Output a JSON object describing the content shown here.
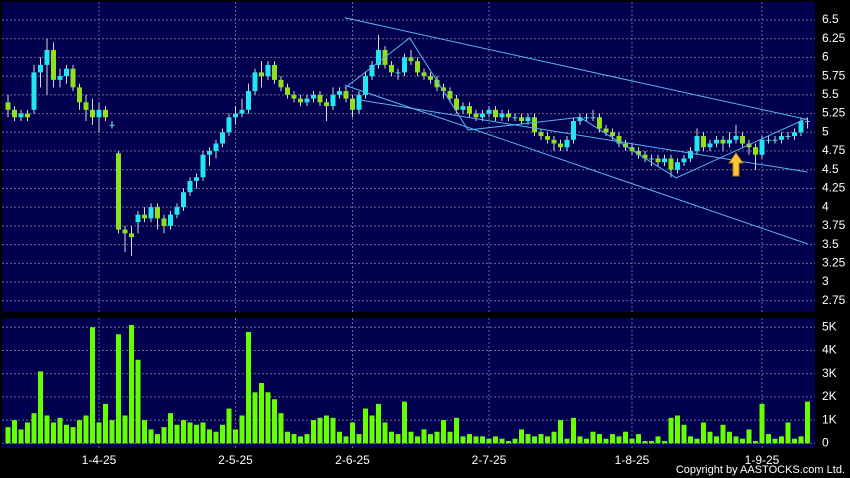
{
  "chart_data": [
    {
      "type": "candlestick",
      "up_color": "#22e6f2",
      "down_color": "#8fe01e",
      "grid": true,
      "line_color": "#5ab4f0",
      "ylim": [
        2.6,
        6.74
      ],
      "yticks": [
        6.5,
        6.25,
        6,
        5.75,
        5.5,
        5.25,
        5,
        4.75,
        4.5,
        4.25,
        4,
        3.75,
        3.5,
        3.25,
        3,
        2.75
      ],
      "ohlc": [
        [
          5.4,
          5.5,
          5.2,
          5.3
        ],
        [
          5.3,
          5.35,
          5.15,
          5.2
        ],
        [
          5.2,
          5.3,
          5.15,
          5.25
        ],
        [
          5.25,
          5.3,
          5.15,
          5.2
        ],
        [
          5.3,
          5.9,
          5.25,
          5.8
        ],
        [
          5.8,
          6.0,
          5.6,
          5.9
        ],
        [
          5.9,
          6.25,
          5.5,
          6.1
        ],
        [
          6.1,
          6.2,
          5.6,
          5.7
        ],
        [
          5.7,
          5.85,
          5.6,
          5.75
        ],
        [
          5.75,
          5.9,
          5.65,
          5.85
        ],
        [
          5.85,
          5.9,
          5.55,
          5.6
        ],
        [
          5.6,
          5.65,
          5.3,
          5.4
        ],
        [
          5.4,
          5.5,
          5.15,
          5.3
        ],
        [
          5.3,
          5.45,
          5.1,
          5.2
        ],
        [
          5.2,
          5.4,
          5.0,
          5.3
        ],
        [
          5.3,
          5.35,
          5.15,
          5.2
        ],
        [
          5.1,
          5.15,
          5.05,
          5.1
        ],
        [
          4.72,
          4.75,
          3.65,
          3.7
        ],
        [
          3.7,
          3.75,
          3.4,
          3.65
        ],
        [
          3.65,
          3.75,
          3.35,
          3.6
        ],
        [
          3.8,
          3.95,
          3.65,
          3.9
        ],
        [
          3.9,
          4.0,
          3.8,
          3.85
        ],
        [
          3.85,
          4.05,
          3.8,
          4.0
        ],
        [
          4.0,
          4.05,
          3.7,
          3.85
        ],
        [
          3.85,
          3.9,
          3.65,
          3.75
        ],
        [
          3.75,
          3.95,
          3.7,
          3.9
        ],
        [
          3.9,
          4.05,
          3.85,
          4.0
        ],
        [
          4.0,
          4.25,
          3.95,
          4.2
        ],
        [
          4.2,
          4.4,
          4.15,
          4.35
        ],
        [
          4.35,
          4.45,
          4.25,
          4.4
        ],
        [
          4.4,
          4.75,
          4.35,
          4.7
        ],
        [
          4.7,
          4.8,
          4.55,
          4.75
        ],
        [
          4.75,
          4.9,
          4.65,
          4.85
        ],
        [
          4.85,
          5.05,
          4.8,
          5.0
        ],
        [
          5.0,
          5.25,
          4.95,
          5.2
        ],
        [
          5.2,
          5.35,
          5.1,
          5.25
        ],
        [
          5.25,
          5.45,
          5.2,
          5.3
        ],
        [
          5.3,
          5.65,
          5.25,
          5.55
        ],
        [
          5.55,
          5.85,
          5.5,
          5.8
        ],
        [
          5.8,
          5.95,
          5.6,
          5.75
        ],
        [
          5.75,
          5.95,
          5.7,
          5.9
        ],
        [
          5.9,
          5.95,
          5.65,
          5.7
        ],
        [
          5.7,
          5.75,
          5.55,
          5.6
        ],
        [
          5.6,
          5.65,
          5.45,
          5.5
        ],
        [
          5.5,
          5.55,
          5.4,
          5.45
        ],
        [
          5.45,
          5.5,
          5.35,
          5.4
        ],
        [
          5.4,
          5.5,
          5.35,
          5.45
        ],
        [
          5.45,
          5.55,
          5.4,
          5.5
        ],
        [
          5.5,
          5.55,
          5.35,
          5.4
        ],
        [
          5.4,
          5.45,
          5.15,
          5.35
        ],
        [
          5.35,
          5.6,
          5.3,
          5.5
        ],
        [
          5.5,
          5.6,
          5.45,
          5.55
        ],
        [
          5.55,
          5.6,
          5.4,
          5.45
        ],
        [
          5.45,
          5.5,
          5.2,
          5.3
        ],
        [
          5.3,
          5.55,
          5.25,
          5.5
        ],
        [
          5.5,
          5.8,
          5.45,
          5.75
        ],
        [
          5.75,
          5.95,
          5.7,
          5.9
        ],
        [
          5.9,
          6.3,
          5.85,
          6.1
        ],
        [
          6.1,
          6.15,
          5.85,
          5.9
        ],
        [
          5.9,
          5.95,
          5.75,
          5.8
        ],
        [
          5.8,
          5.85,
          5.7,
          5.8
        ],
        [
          5.8,
          6.05,
          5.75,
          6.0
        ],
        [
          6.0,
          6.1,
          5.9,
          5.95
        ],
        [
          5.95,
          6.0,
          5.75,
          5.8
        ],
        [
          5.8,
          5.85,
          5.7,
          5.75
        ],
        [
          5.75,
          5.8,
          5.65,
          5.7
        ],
        [
          5.7,
          5.75,
          5.55,
          5.6
        ],
        [
          5.6,
          5.65,
          5.45,
          5.55
        ],
        [
          5.55,
          5.6,
          5.4,
          5.45
        ],
        [
          5.45,
          5.5,
          5.25,
          5.3
        ],
        [
          5.3,
          5.4,
          5.25,
          5.35
        ],
        [
          5.35,
          5.4,
          5.2,
          5.25
        ],
        [
          5.25,
          5.3,
          5.15,
          5.2
        ],
        [
          5.2,
          5.3,
          5.15,
          5.25
        ],
        [
          5.25,
          5.35,
          5.2,
          5.3
        ],
        [
          5.3,
          5.35,
          5.15,
          5.2
        ],
        [
          5.2,
          5.3,
          5.15,
          5.25
        ],
        [
          5.25,
          5.3,
          5.15,
          5.2
        ],
        [
          5.2,
          5.25,
          5.15,
          5.2
        ],
        [
          5.2,
          5.25,
          5.1,
          5.15
        ],
        [
          5.15,
          5.25,
          5.1,
          5.2
        ],
        [
          5.2,
          5.25,
          4.95,
          5.0
        ],
        [
          5.0,
          5.05,
          4.9,
          4.95
        ],
        [
          4.95,
          5.0,
          4.85,
          4.9
        ],
        [
          4.9,
          4.95,
          4.75,
          4.85
        ],
        [
          4.85,
          4.9,
          4.75,
          4.8
        ],
        [
          4.8,
          4.95,
          4.75,
          4.9
        ],
        [
          4.9,
          5.2,
          4.85,
          5.15
        ],
        [
          5.15,
          5.25,
          5.1,
          5.2
        ],
        [
          5.2,
          5.25,
          5.15,
          5.2
        ],
        [
          5.2,
          5.3,
          5.15,
          5.2
        ],
        [
          5.2,
          5.25,
          5.0,
          5.05
        ],
        [
          5.05,
          5.1,
          4.95,
          5.0
        ],
        [
          5.0,
          5.05,
          4.9,
          4.95
        ],
        [
          4.95,
          5.0,
          4.8,
          4.85
        ],
        [
          4.85,
          4.9,
          4.75,
          4.8
        ],
        [
          4.8,
          4.85,
          4.7,
          4.75
        ],
        [
          4.75,
          4.8,
          4.65,
          4.7
        ],
        [
          4.7,
          4.75,
          4.6,
          4.65
        ],
        [
          4.65,
          4.7,
          4.55,
          4.65
        ],
        [
          4.65,
          4.7,
          4.55,
          4.6
        ],
        [
          4.6,
          4.7,
          4.55,
          4.65
        ],
        [
          4.65,
          4.7,
          4.4,
          4.5
        ],
        [
          4.5,
          4.65,
          4.45,
          4.6
        ],
        [
          4.6,
          4.7,
          4.55,
          4.65
        ],
        [
          4.65,
          4.8,
          4.6,
          4.75
        ],
        [
          4.75,
          5.05,
          4.7,
          4.95
        ],
        [
          4.95,
          5.0,
          4.75,
          4.8
        ],
        [
          4.8,
          4.9,
          4.75,
          4.85
        ],
        [
          4.85,
          4.95,
          4.8,
          4.9
        ],
        [
          4.9,
          4.95,
          4.75,
          4.85
        ],
        [
          4.85,
          5.0,
          4.8,
          4.9
        ],
        [
          4.9,
          5.1,
          4.85,
          4.95
        ],
        [
          4.95,
          5.0,
          4.8,
          4.85
        ],
        [
          4.85,
          4.9,
          4.7,
          4.8
        ],
        [
          4.8,
          4.85,
          4.5,
          4.7
        ],
        [
          4.7,
          4.95,
          4.65,
          4.9
        ],
        [
          4.9,
          4.95,
          4.85,
          4.9
        ],
        [
          4.9,
          4.95,
          4.85,
          4.9
        ],
        [
          4.9,
          5.0,
          4.85,
          4.95
        ],
        [
          4.95,
          5.0,
          4.9,
          4.95
        ],
        [
          4.95,
          5.05,
          4.9,
          5.0
        ],
        [
          5.0,
          5.2,
          4.95,
          5.15
        ],
        [
          5.15,
          5.2,
          5.05,
          5.15
        ]
      ],
      "trendlines": [
        {
          "x": [
            51.8,
            123
          ],
          "y": [
            6.53,
            5.17
          ]
        },
        {
          "x": [
            51.8,
            123
          ],
          "y": [
            5.63,
            3.51
          ]
        },
        {
          "x": [
            54.2,
            123
          ],
          "y": [
            5.43,
            4.47
          ]
        },
        {
          "x": [
            51.8,
            61.8,
            70.8,
            88,
            102.8,
            123
          ],
          "y": [
            5.59,
            6.26,
            5.03,
            5.2,
            4.39,
            5.19
          ]
        }
      ]
    },
    {
      "type": "bar",
      "color": "#66ff00",
      "grid": true,
      "ylim": [
        -200,
        5400
      ],
      "yticks": [
        {
          "value": 5000,
          "label": "5K"
        },
        {
          "value": 4000,
          "label": "4K"
        },
        {
          "value": 3000,
          "label": "3K"
        },
        {
          "value": 2000,
          "label": "2K"
        },
        {
          "value": 1000,
          "label": "1K"
        },
        {
          "value": 0,
          "label": "0"
        }
      ],
      "categories": [
        null,
        null,
        null,
        null,
        null,
        null,
        null,
        null,
        null,
        null,
        null,
        null,
        null,
        null,
        "1-4-25",
        null,
        null,
        null,
        null,
        null,
        null,
        null,
        null,
        null,
        null,
        null,
        null,
        null,
        null,
        null,
        null,
        null,
        null,
        null,
        null,
        "2-5-25",
        null,
        null,
        null,
        null,
        null,
        null,
        null,
        null,
        null,
        null,
        null,
        null,
        null,
        null,
        null,
        null,
        null,
        "2-6-25",
        null,
        null,
        null,
        null,
        null,
        null,
        null,
        null,
        null,
        null,
        null,
        null,
        null,
        null,
        null,
        null,
        null,
        null,
        null,
        null,
        "2-7-25",
        null,
        null,
        null,
        null,
        null,
        null,
        null,
        null,
        null,
        null,
        null,
        null,
        null,
        null,
        null,
        null,
        null,
        null,
        null,
        null,
        null,
        "1-8-25",
        null,
        null,
        null,
        null,
        null,
        null,
        null,
        null,
        null,
        null,
        null,
        null,
        null,
        null,
        null,
        null,
        null,
        null,
        null,
        "1-9-25",
        null,
        null,
        null,
        null,
        null,
        null,
        null
      ],
      "values": [
        700,
        1000,
        600,
        900,
        1300,
        3100,
        1200,
        900,
        1100,
        800,
        700,
        1000,
        1200,
        5000,
        900,
        1700,
        1000,
        4700,
        1200,
        5100,
        3600,
        1000,
        600,
        400,
        700,
        1300,
        800,
        1000,
        900,
        800,
        900,
        600,
        500,
        800,
        1500,
        600,
        1200,
        4800,
        2200,
        2600,
        2200,
        1900,
        1300,
        500,
        400,
        300,
        400,
        1000,
        1100,
        1200,
        1100,
        500,
        300,
        900,
        400,
        1500,
        1200,
        1700,
        900,
        500,
        400,
        1800,
        500,
        300,
        600,
        400,
        500,
        1000,
        500,
        1100,
        300,
        400,
        300,
        300,
        200,
        300,
        200,
        100,
        200,
        600,
        400,
        300,
        400,
        300,
        500,
        1000,
        200,
        1100,
        300,
        200,
        500,
        400,
        200,
        400,
        300,
        500,
        200,
        400,
        100,
        100,
        300,
        100,
        1100,
        1200,
        800,
        300,
        200,
        900,
        500,
        300,
        800,
        500,
        300,
        200,
        600,
        100,
        1700,
        400,
        200,
        300,
        900,
        200,
        300,
        1800
      ]
    }
  ],
  "copyright": "Copyright by AASTOCKS.com Ltd."
}
